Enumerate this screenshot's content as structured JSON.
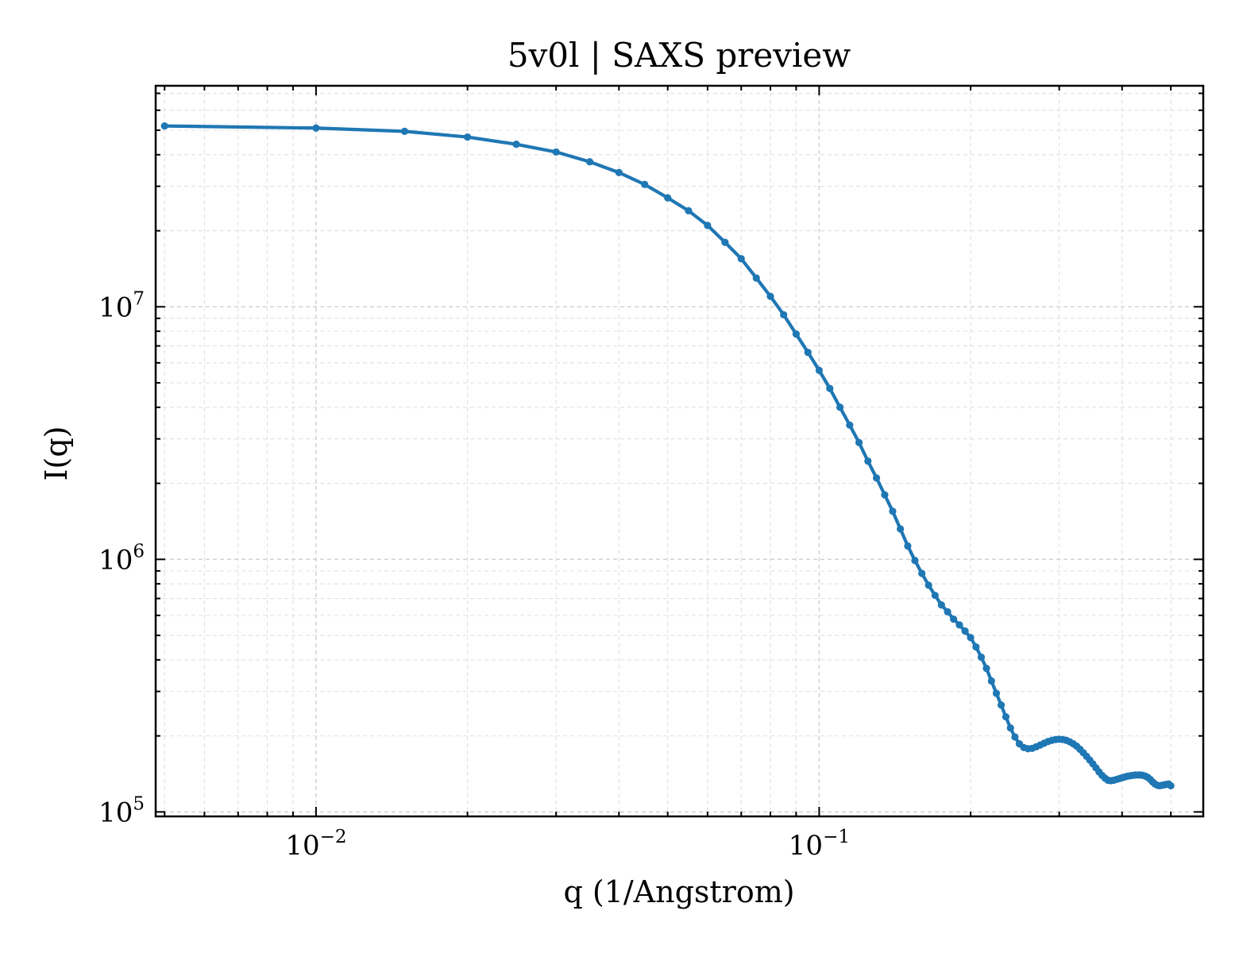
{
  "chart_data": {
    "type": "line",
    "title": "5v0l | SAXS preview",
    "xlabel": "q (1/Angstrom)",
    "ylabel": "I(q)",
    "xscale": "log",
    "yscale": "log",
    "xlim": [
      0.0048,
      0.58
    ],
    "ylim": [
      96000,
      75000000
    ],
    "grid": true,
    "color": "#1f77b4",
    "x_ticks": [
      {
        "base": "10",
        "exp": "−2"
      },
      {
        "base": "10",
        "exp": "−1"
      }
    ],
    "y_ticks": [
      {
        "base": "10",
        "exp": "5"
      },
      {
        "base": "10",
        "exp": "6"
      },
      {
        "base": "10",
        "exp": "7"
      }
    ],
    "series": [
      {
        "x": [
          0.005,
          0.01,
          0.015,
          0.02,
          0.025,
          0.03,
          0.035,
          0.04,
          0.045,
          0.05,
          0.055,
          0.06,
          0.065,
          0.07,
          0.075,
          0.08,
          0.085,
          0.09,
          0.095,
          0.1,
          0.105,
          0.11,
          0.115,
          0.12,
          0.125,
          0.13,
          0.135,
          0.14,
          0.145,
          0.15,
          0.155,
          0.16,
          0.165,
          0.17,
          0.175,
          0.18,
          0.185,
          0.19,
          0.195,
          0.2,
          0.205,
          0.21,
          0.215,
          0.22,
          0.225,
          0.23,
          0.235,
          0.24,
          0.245,
          0.25,
          0.255,
          0.26,
          0.265,
          0.27,
          0.275,
          0.28,
          0.285,
          0.29,
          0.295,
          0.3,
          0.305,
          0.31,
          0.315,
          0.32,
          0.325,
          0.33,
          0.335,
          0.34,
          0.345,
          0.35,
          0.355,
          0.36,
          0.365,
          0.37,
          0.375,
          0.38,
          0.385,
          0.39,
          0.395,
          0.4,
          0.405,
          0.41,
          0.415,
          0.42,
          0.425,
          0.43,
          0.435,
          0.44,
          0.445,
          0.45,
          0.455,
          0.46,
          0.465,
          0.47,
          0.475,
          0.48,
          0.485,
          0.49,
          0.495,
          0.5
        ],
        "y": [
          52000000,
          51000000,
          49500000,
          47000000,
          44000000,
          41000000,
          37500000,
          34000000,
          30500000,
          27000000,
          24000000,
          21000000,
          18000000,
          15500000,
          13000000,
          11000000,
          9300000,
          7800000,
          6600000,
          5600000,
          4750000,
          4000000,
          3400000,
          2900000,
          2450000,
          2100000,
          1800000,
          1550000,
          1320000,
          1130000,
          990000,
          880000,
          790000,
          720000,
          660000,
          620000,
          580000,
          550000,
          520000,
          490000,
          450000,
          410000,
          370000,
          330000,
          295000,
          265000,
          238000,
          215000,
          198000,
          186000,
          180000,
          178000,
          178500,
          181000,
          184000,
          187000,
          190000,
          192000,
          193500,
          194000,
          193500,
          192000,
          189500,
          186000,
          182000,
          177000,
          171500,
          166000,
          160500,
          155000,
          149500,
          144000,
          139500,
          136000,
          133500,
          133000,
          133500,
          134500,
          135500,
          136500,
          137500,
          138500,
          139000,
          139500,
          140000,
          140000,
          140000,
          139500,
          138500,
          137000,
          134500,
          131500,
          129000,
          127500,
          127000,
          127500,
          128000,
          128500,
          129000,
          127000
        ]
      }
    ]
  }
}
